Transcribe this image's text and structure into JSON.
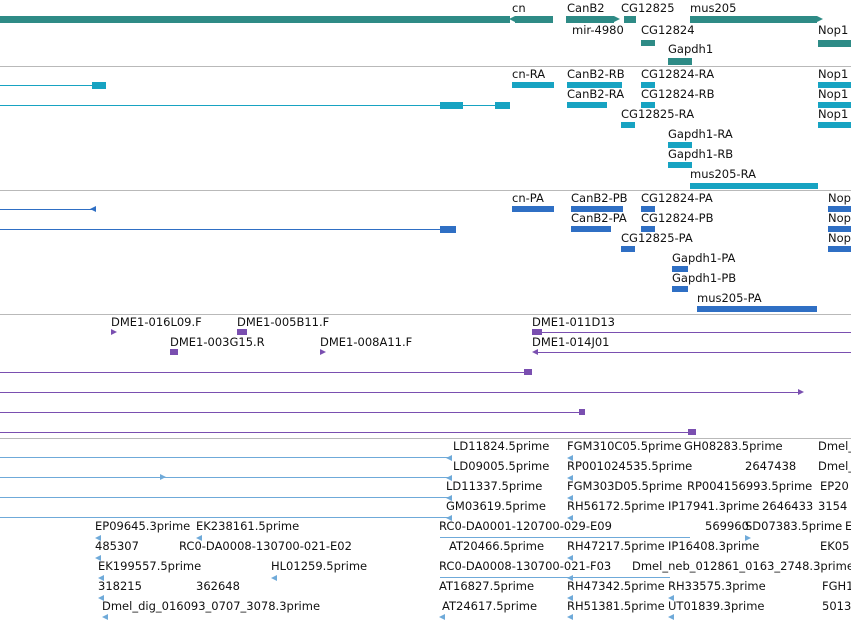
{
  "colors": {
    "gene": "#2e8b86",
    "transcript": "#17a3c2",
    "protein": "#2f6fc4",
    "clone": "#7a4fb0",
    "est": "#6faad9",
    "separator": "#b9b9b9"
  },
  "tracks": {
    "genes": {
      "labels": [
        "cn",
        "CanB2",
        "CG12825",
        "mus205",
        "mir-4980",
        "CG12824",
        "Nop1",
        "Gapdh1"
      ]
    },
    "transcripts": {
      "labels": [
        "cn-RA",
        "CanB2-RB",
        "CG12824-RA",
        "Nop1",
        "CanB2-RA",
        "CG12824-RB",
        "Nop1",
        "CG12825-RA",
        "Nop1",
        "Gapdh1-RA",
        "Gapdh1-RB",
        "mus205-RA"
      ]
    },
    "proteins": {
      "labels": [
        "cn-PA",
        "CanB2-PB",
        "CG12824-PA",
        "Nop",
        "CanB2-PA",
        "CG12824-PB",
        "Nop",
        "CG12825-PA",
        "Nop",
        "Gapdh1-PA",
        "Gapdh1-PB",
        "mus205-PA"
      ]
    },
    "clones": {
      "labels": [
        "DME1-016L09.F",
        "DME1-005B11.F",
        "DME1-011D13",
        "DME1-003G15.R",
        "DME1-008A11.F",
        "DME1-014J01"
      ]
    },
    "ests": {
      "labels": [
        "LD11824.5prime",
        "FGM310C05.5prime",
        "GH08283.5prime",
        "Dmel_",
        "LD09005.5prime",
        "RP001024535.5prime",
        "2647438",
        "Dmel_",
        "LD11337.5prime",
        "FGM303D05.5prime",
        "RP004156993.5prime",
        "EP20",
        "GM03619.5prime",
        "RH56172.5prime",
        "IP17941.3prime",
        "2646433",
        "3154",
        "EP09645.3prime",
        "EK238161.5prime",
        "RC0-DA0001-120700-029-E09",
        "569960",
        "SD07383.5prime",
        "E",
        "485307",
        "RC0-DA0008-130700-021-E02",
        "AT20466.5prime",
        "RH47217.5prime",
        "IP16408.3prime",
        "EK05",
        "EK199557.5prime",
        "HL01259.5prime",
        "RC0-DA0008-130700-021-F03",
        "Dmel_neb_012861_0163_2748.3prime",
        "318215",
        "362648",
        "AT16827.5prime",
        "RH47342.5prime",
        "RH33575.3prime",
        "FGH1",
        "Dmel_dig_016093_0707_3078.3prime",
        "AT24617.5prime",
        "RH51381.5prime",
        "UT01839.3prime",
        "5013"
      ]
    }
  }
}
